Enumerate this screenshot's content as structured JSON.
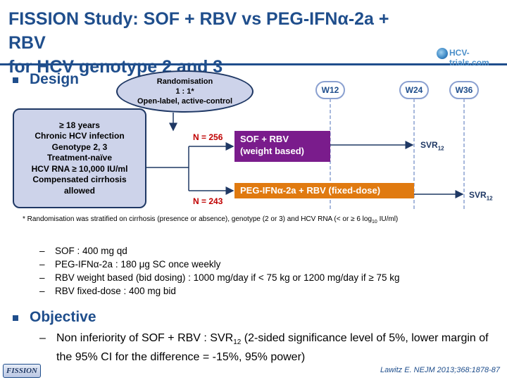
{
  "title": {
    "line1_prefix": "FISSION Study: SOF + RBV vs PEG-IFN",
    "line1_alpha": "α",
    "line1_suffix": "-2a + RBV",
    "line2": "for HCV genotype 2 and 3"
  },
  "logo": {
    "text": "HCV-trials.com"
  },
  "design": {
    "heading": "Design",
    "randomisation": {
      "line1": "Randomisation",
      "line2": "1 : 1*",
      "line3": "Open-label, active-control"
    },
    "criteria": [
      "≥ 18 years",
      "Chronic HCV infection",
      "Genotype 2, 3",
      "Treatment-naïve",
      "HCV RNA ≥ 10,000 IU/ml",
      "Compensated cirrhosis",
      "allowed"
    ],
    "weeks": [
      "W12",
      "W24",
      "W36"
    ],
    "arm1": {
      "n": "N = 256",
      "line1": "SOF + RBV",
      "line2": "(weight based)",
      "endpoint": "SVR",
      "endpoint_sub": "12"
    },
    "arm2": {
      "n": "N = 243",
      "prefix": "PEG-IFN",
      "alpha": "α",
      "suffix": "-2a + RBV (fixed-dose)",
      "endpoint": "SVR",
      "endpoint_sub": "12"
    },
    "footnote": {
      "main": "* Randomisation was stratified on cirrhosis (presence or absence), genotype (2 or 3) and HCV RNA (< or ≥ 6 log",
      "sub": "10",
      "tail": " IU/ml)"
    },
    "doses": [
      {
        "dash": "–",
        "text": "SOF : 400 mg qd"
      },
      {
        "dash": "–",
        "text": "PEG-IFNα-2a : 180 μg SC once weekly"
      },
      {
        "dash": "–",
        "text": "RBV weight based (bid dosing) : 1000 mg/day if < 75 kg or 1200 mg/day if ≥ 75 kg"
      },
      {
        "dash": "–",
        "text": "RBV fixed-dose : 400 mg bid"
      }
    ]
  },
  "objective": {
    "heading": "Objective",
    "dash": "–",
    "text_before": "Non inferiority of SOF + RBV : SVR",
    "text_sub": "12",
    "text_after": " (2-sided significance level of 5%, lower margin of the 95% CI for the difference = -15%, 95% power)"
  },
  "footer": {
    "tag": "FISSION",
    "reference": "Lawitz E. NEJM 2013;368:1878-87"
  },
  "colors": {
    "title_blue": "#1f4e8c",
    "arm1_purple": "#7a1c8c",
    "arm2_orange": "#e07a10",
    "n_red": "#c00000",
    "box_fill": "#cdd3ea"
  }
}
